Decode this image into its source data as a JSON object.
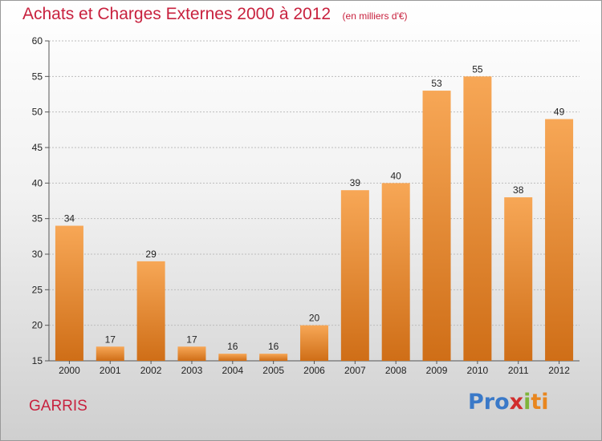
{
  "header": {
    "title": "Achats et Charges Externes 2000 à 2012",
    "unit": "(en milliers d'€)"
  },
  "footer": {
    "commune": "GARRIS",
    "logo_parts": [
      "Pro",
      "x",
      "i",
      "ti"
    ]
  },
  "colors": {
    "title": "#c8213e",
    "bar_top": "#f7a756",
    "bar_bottom": "#cf6e17",
    "grid": "#bdbdbd"
  },
  "chart_data": {
    "type": "bar",
    "title": "Achats et Charges Externes 2000 à 2012",
    "subtitle": "(en milliers d'€)",
    "categories": [
      "2000",
      "2001",
      "2002",
      "2003",
      "2004",
      "2005",
      "2006",
      "2007",
      "2008",
      "2009",
      "2010",
      "2011",
      "2012"
    ],
    "values": [
      34,
      17,
      29,
      17,
      16,
      16,
      20,
      39,
      40,
      53,
      55,
      38,
      49
    ],
    "ylim": [
      15,
      60
    ],
    "yticks": [
      15,
      20,
      25,
      30,
      35,
      40,
      45,
      50,
      55,
      60
    ],
    "grid": true,
    "data_labels": true,
    "legend": "none"
  }
}
